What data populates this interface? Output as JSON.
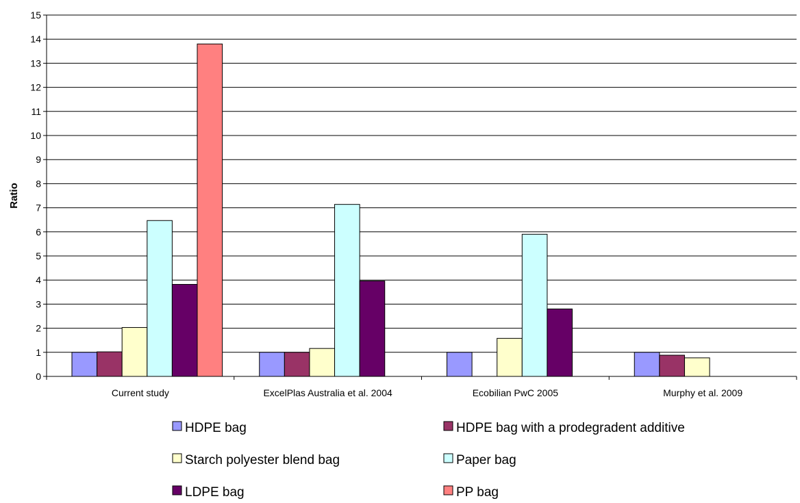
{
  "chart_data": {
    "type": "bar",
    "title": "",
    "xlabel": "",
    "ylabel": "Ratio",
    "ylim": [
      0,
      15
    ],
    "yticks": [
      0,
      1,
      2,
      3,
      4,
      5,
      6,
      7,
      8,
      9,
      10,
      11,
      12,
      13,
      14,
      15
    ],
    "grid": true,
    "legend_position": "bottom",
    "categories": [
      "Current study",
      "ExcelPlas Australia et al. 2004",
      "Ecobilian PwC 2005",
      "Murphy et al. 2009"
    ],
    "series": [
      {
        "name": "HDPE bag",
        "color": "#9999ff",
        "values": [
          1,
          1,
          1,
          1
        ]
      },
      {
        "name": "HDPE bag with a prodegradent additive",
        "color": "#993366",
        "values": [
          1.02,
          1,
          null,
          0.88
        ]
      },
      {
        "name": "Starch polyester blend bag",
        "color": "#ffffcc",
        "values": [
          2.03,
          1.16,
          1.58,
          0.77
        ]
      },
      {
        "name": "Paper bag",
        "color": "#ccffff",
        "values": [
          6.47,
          7.14,
          5.9,
          null
        ]
      },
      {
        "name": "LDPE bag",
        "color": "#660066",
        "values": [
          3.82,
          3.96,
          2.8,
          null
        ]
      },
      {
        "name": "PP bag",
        "color": "#ff8080",
        "values": [
          13.8,
          null,
          null,
          null
        ]
      }
    ]
  }
}
